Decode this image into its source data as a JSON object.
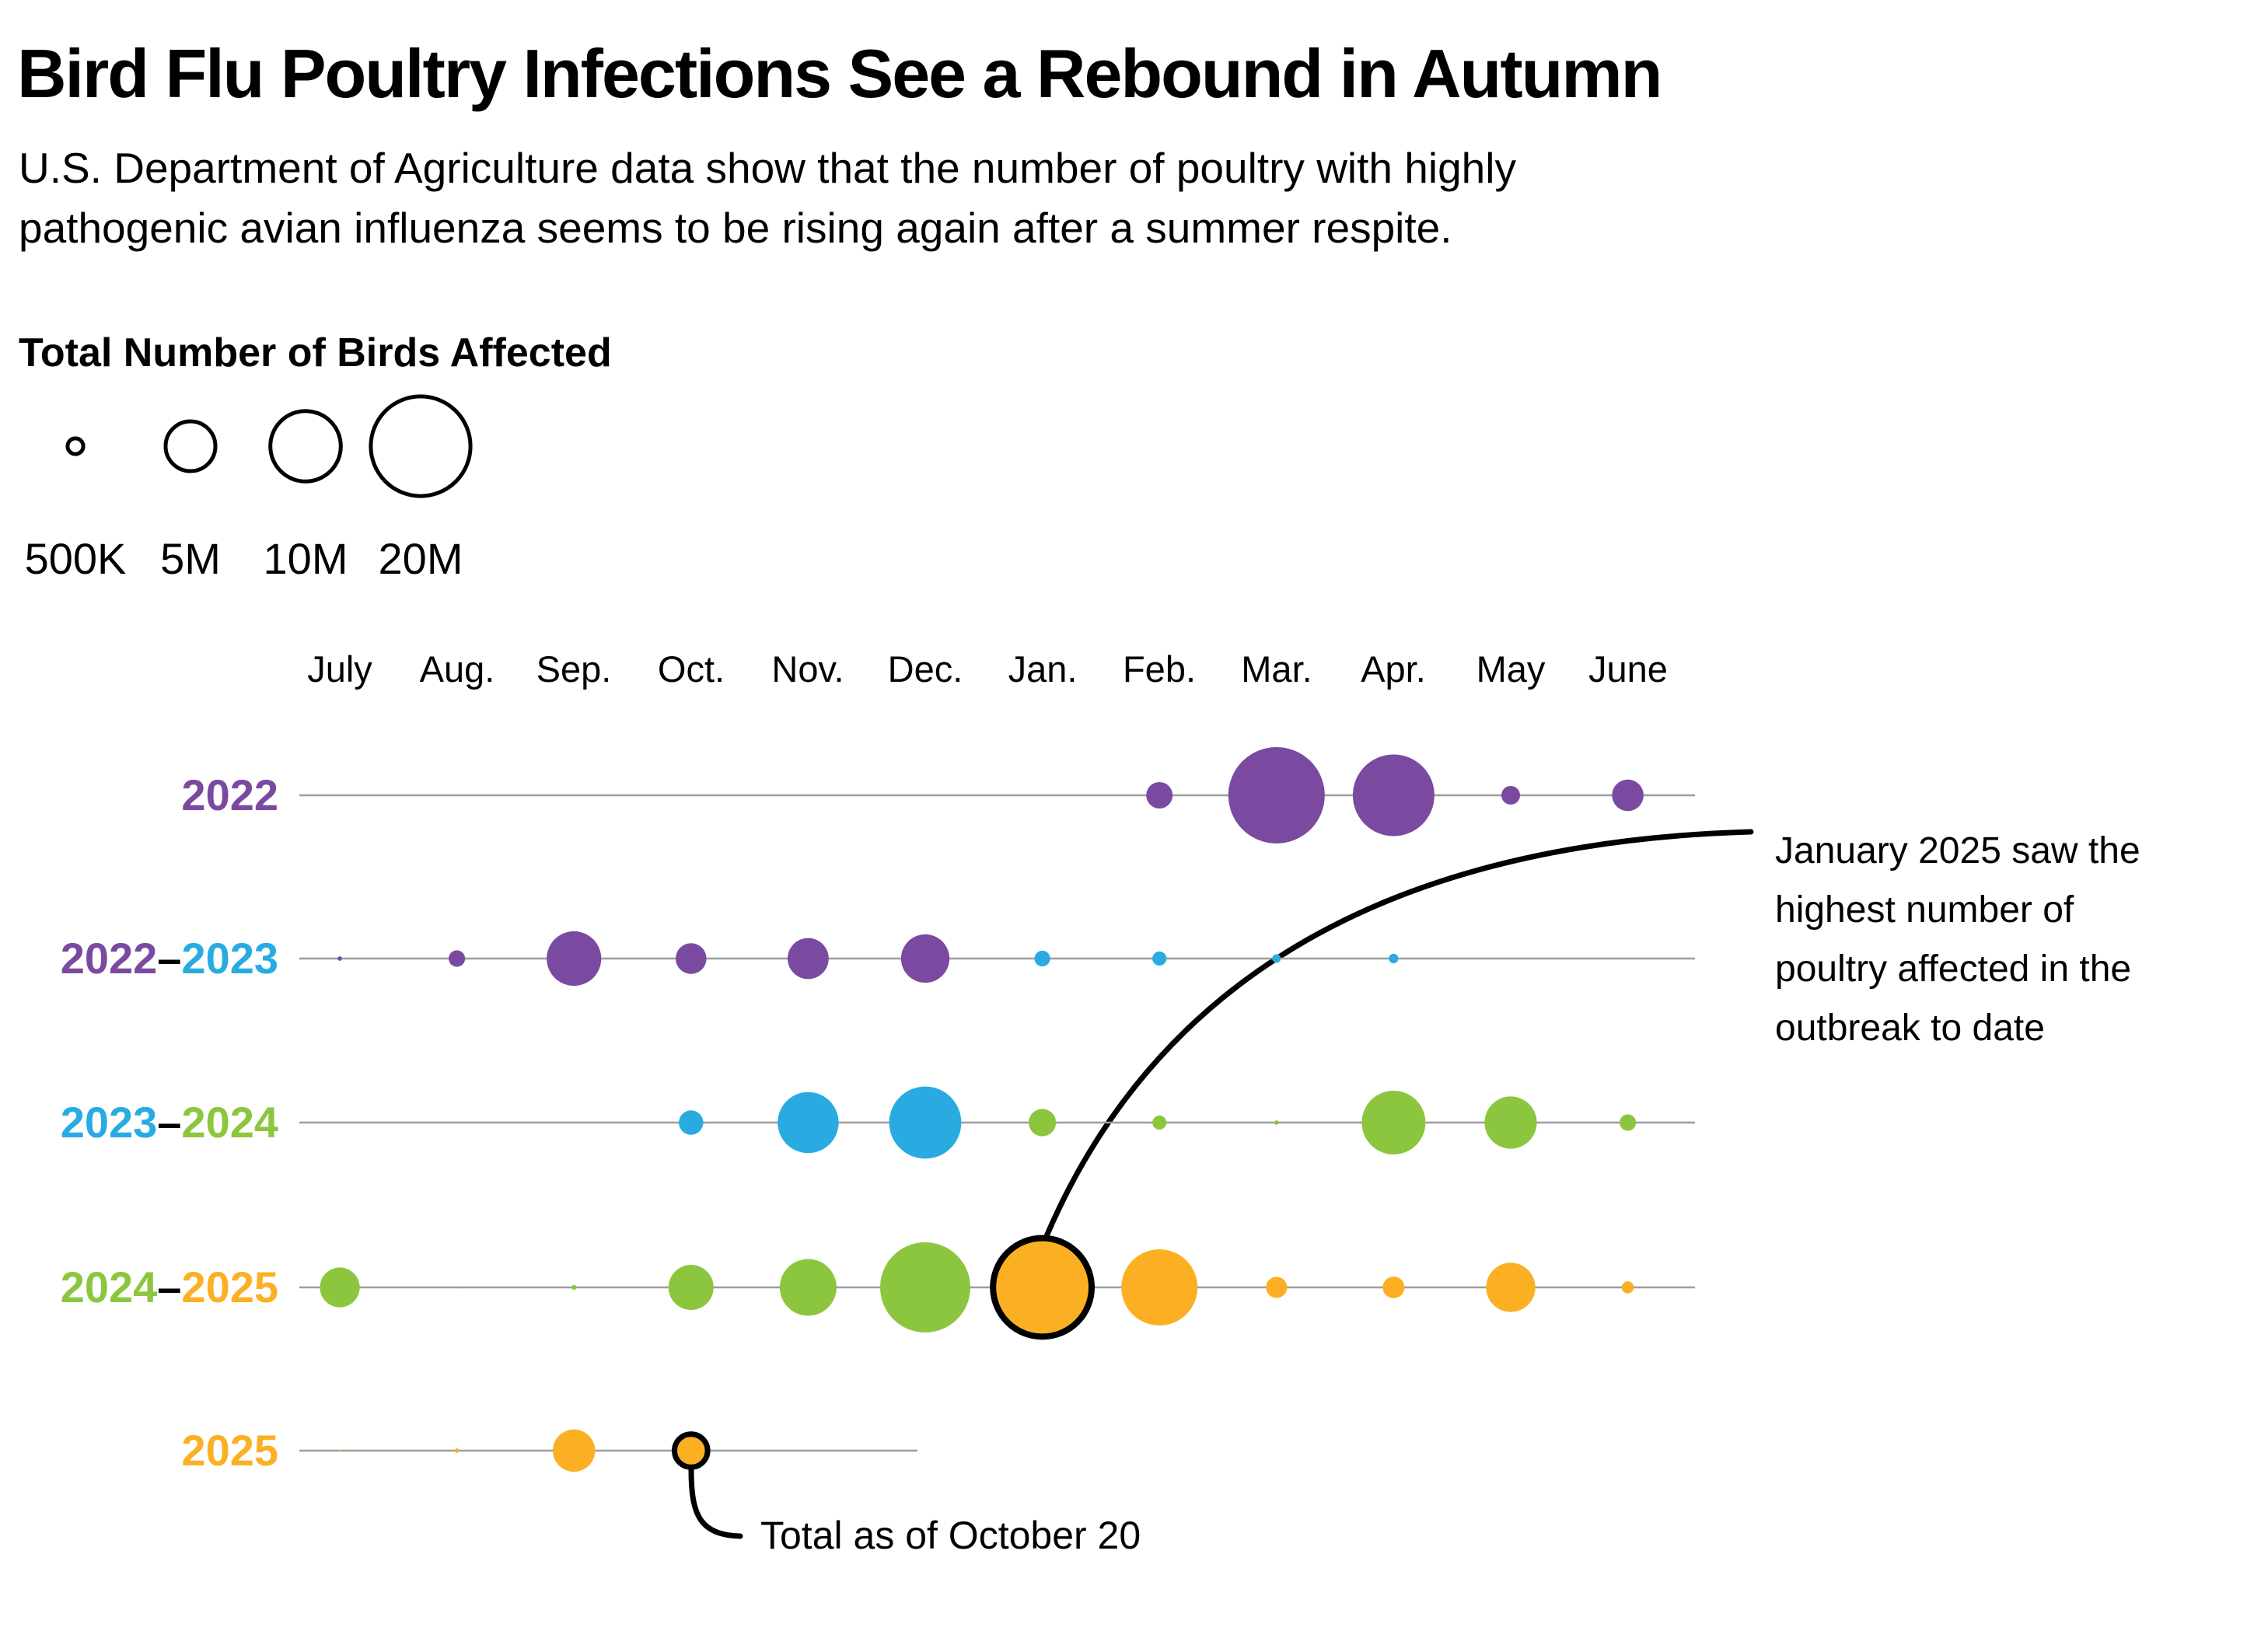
{
  "header": {
    "title": "Bird Flu Poultry Infections See a Rebound in Autumn",
    "subtitle_lines": [
      "U.S. Department of Agriculture data show that the number of poultry with highly",
      "pathogenic avian influenza seems to be rising again after a summer respite."
    ]
  },
  "legend": {
    "title": "Total Number of Birds Affected",
    "items": [
      {
        "label": "500K",
        "value_m": 0.5
      },
      {
        "label": "5M",
        "value_m": 5
      },
      {
        "label": "10M",
        "value_m": 10
      },
      {
        "label": "20M",
        "value_m": 20
      }
    ]
  },
  "chart_data": {
    "type": "bubble-timeline",
    "title": "Bird Flu Poultry Infections See a Rebound in Autumn",
    "unit": "millions of birds affected (bubble area proportional to value)",
    "months": [
      "July",
      "Aug.",
      "Sep.",
      "Oct.",
      "Nov.",
      "Dec.",
      "Jan.",
      "Feb.",
      "Mar.",
      "Apr.",
      "May",
      "June"
    ],
    "colors": {
      "2022": "#7A4AA1",
      "2023": "#29ABE2",
      "2024": "#8CC63F",
      "2025": "#FBB024"
    },
    "rows": [
      {
        "label": "2022",
        "label_parts": [
          {
            "text": "2022",
            "year": "2022"
          }
        ],
        "bubbles": [
          {
            "month": "Feb.",
            "value_m": 1.4,
            "year": "2022"
          },
          {
            "month": "Mar.",
            "value_m": 18.7,
            "year": "2022"
          },
          {
            "month": "Apr.",
            "value_m": 13.4,
            "year": "2022"
          },
          {
            "month": "May",
            "value_m": 0.7,
            "year": "2022"
          },
          {
            "month": "June",
            "value_m": 2.0,
            "year": "2022"
          }
        ]
      },
      {
        "label": "2022–2023",
        "label_parts": [
          {
            "text": "2022",
            "year": "2022"
          },
          {
            "text": "–"
          },
          {
            "text": "2023",
            "year": "2023"
          }
        ],
        "bubbles": [
          {
            "month": "July",
            "value_m": 0.04,
            "year": "2022"
          },
          {
            "month": "Aug.",
            "value_m": 0.55,
            "year": "2022"
          },
          {
            "month": "Sep.",
            "value_m": 6.0,
            "year": "2022"
          },
          {
            "month": "Oct.",
            "value_m": 1.9,
            "year": "2022"
          },
          {
            "month": "Nov.",
            "value_m": 3.4,
            "year": "2022"
          },
          {
            "month": "Dec.",
            "value_m": 4.7,
            "year": "2022"
          },
          {
            "month": "Jan.",
            "value_m": 0.5,
            "year": "2023"
          },
          {
            "month": "Feb.",
            "value_m": 0.4,
            "year": "2023"
          },
          {
            "month": "Mar.",
            "value_m": 0.15,
            "year": "2023"
          },
          {
            "month": "Apr.",
            "value_m": 0.18,
            "year": "2023"
          }
        ]
      },
      {
        "label": "2023–2024",
        "label_parts": [
          {
            "text": "2023",
            "year": "2023"
          },
          {
            "text": "–"
          },
          {
            "text": "2024",
            "year": "2024"
          }
        ],
        "bubbles": [
          {
            "month": "Oct.",
            "value_m": 1.2,
            "year": "2023"
          },
          {
            "month": "Nov.",
            "value_m": 7.5,
            "year": "2023"
          },
          {
            "month": "Dec.",
            "value_m": 10.5,
            "year": "2023"
          },
          {
            "month": "Jan.",
            "value_m": 1.5,
            "year": "2024"
          },
          {
            "month": "Feb.",
            "value_m": 0.4,
            "year": "2024"
          },
          {
            "month": "Mar.",
            "value_m": 0.04,
            "year": "2024"
          },
          {
            "month": "Apr.",
            "value_m": 8.2,
            "year": "2024"
          },
          {
            "month": "May",
            "value_m": 5.5,
            "year": "2024"
          },
          {
            "month": "June",
            "value_m": 0.55,
            "year": "2024"
          }
        ]
      },
      {
        "label": "2024–2025",
        "label_parts": [
          {
            "text": "2024",
            "year": "2024"
          },
          {
            "text": "–"
          },
          {
            "text": "2025",
            "year": "2025"
          }
        ],
        "bubbles": [
          {
            "month": "July",
            "value_m": 3.2,
            "year": "2024"
          },
          {
            "month": "Aug.",
            "value_m": 0.01,
            "year": "2024"
          },
          {
            "month": "Sep.",
            "value_m": 0.05,
            "year": "2024"
          },
          {
            "month": "Oct.",
            "value_m": 4.1,
            "year": "2024"
          },
          {
            "month": "Nov.",
            "value_m": 6.5,
            "year": "2024"
          },
          {
            "month": "Dec.",
            "value_m": 16.4,
            "year": "2024"
          },
          {
            "month": "Jan.",
            "value_m": 19.6,
            "year": "2025",
            "outlined": true
          },
          {
            "month": "Feb.",
            "value_m": 11.7,
            "year": "2025"
          },
          {
            "month": "Mar.",
            "value_m": 0.9,
            "year": "2025"
          },
          {
            "month": "Apr.",
            "value_m": 0.95,
            "year": "2025"
          },
          {
            "month": "May",
            "value_m": 4.9,
            "year": "2025"
          },
          {
            "month": "June",
            "value_m": 0.3,
            "year": "2025"
          }
        ]
      },
      {
        "label": "2025",
        "label_parts": [
          {
            "text": "2025",
            "year": "2025"
          }
        ],
        "bubbles": [
          {
            "month": "July",
            "value_m": 0.01,
            "year": "2025"
          },
          {
            "month": "Aug.",
            "value_m": 0.04,
            "year": "2025"
          },
          {
            "month": "Sep.",
            "value_m": 3.6,
            "year": "2025"
          },
          {
            "month": "Oct.",
            "value_m": 2.2,
            "year": "2025",
            "outlined": true
          }
        ]
      }
    ]
  },
  "callouts": {
    "jan_2025": {
      "lines": [
        "January 2025 saw the",
        "highest number of",
        "poultry affected in the",
        "outbreak to date"
      ],
      "target_month": "Jan.",
      "target_row": "2024–2025"
    },
    "oct_2025": {
      "text": "Total as of October 20",
      "target_month": "Oct.",
      "target_row": "2025"
    }
  }
}
